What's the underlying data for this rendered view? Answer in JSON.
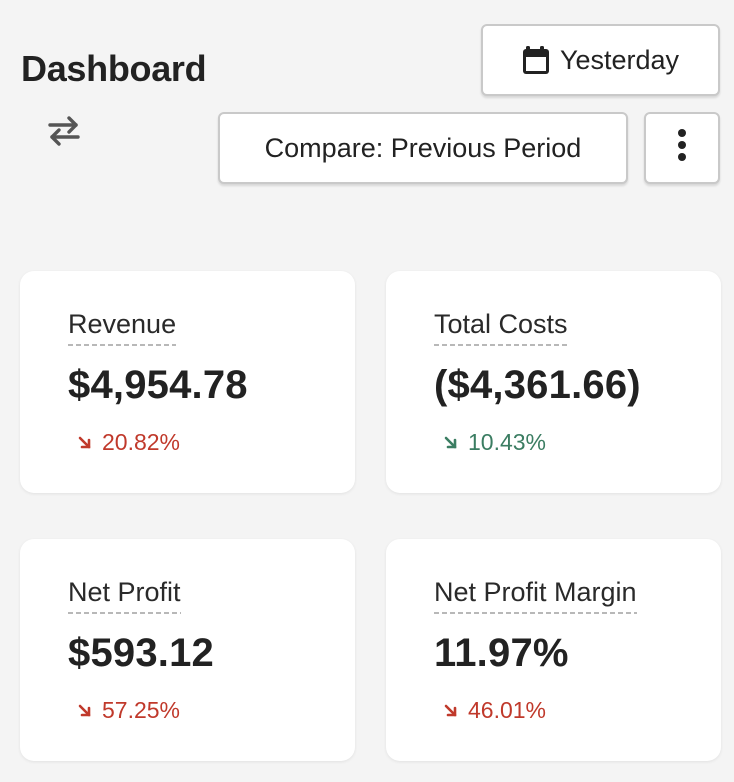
{
  "header": {
    "title": "Dashboard",
    "swap_icon": "swap-arrows-icon"
  },
  "toolbar": {
    "date_range_label": "Yesterday",
    "date_range_icon": "calendar-icon",
    "compare_label": "Compare: Previous Period",
    "more_icon": "more-vertical-icon"
  },
  "colors": {
    "negative": "#c0392b",
    "positive": "#3b7d62",
    "background": "#f4f4f4",
    "card": "#ffffff"
  },
  "metrics": [
    {
      "label": "Revenue",
      "value": "$4,954.78",
      "change": "20.82%",
      "direction": "down",
      "sentiment": "negative"
    },
    {
      "label": "Total Costs",
      "value": "($4,361.66)",
      "change": "10.43%",
      "direction": "down",
      "sentiment": "positive"
    },
    {
      "label": "Net Profit",
      "value": "$593.12",
      "change": "57.25%",
      "direction": "down",
      "sentiment": "negative"
    },
    {
      "label": "Net Profit Margin",
      "value": "11.97%",
      "change": "46.01%",
      "direction": "down",
      "sentiment": "negative"
    }
  ]
}
